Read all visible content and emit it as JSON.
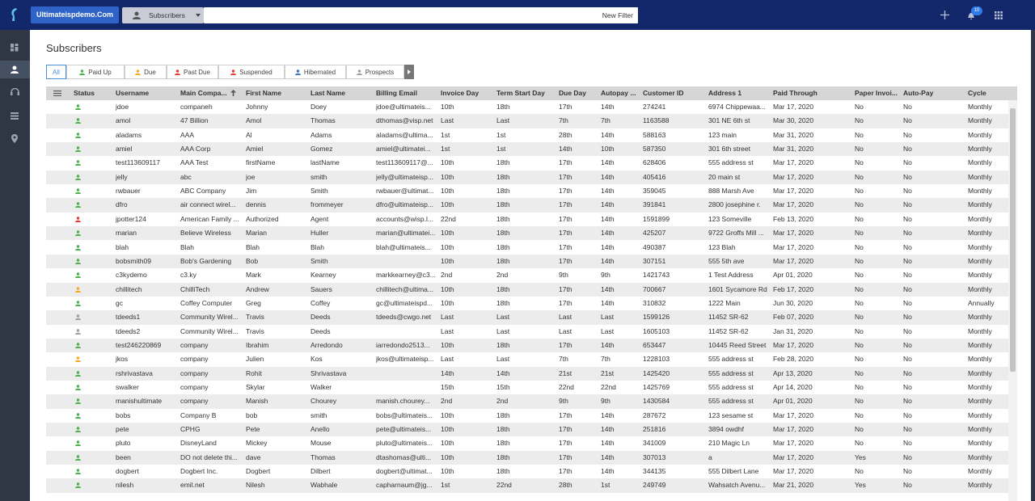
{
  "topbar": {
    "account": "Ultimateispdemo.Com",
    "module": "Subscribers",
    "filter_button": "New Filter",
    "notifications": "10"
  },
  "page": {
    "title": "Subscribers"
  },
  "tabs": [
    {
      "label": "All",
      "color": "#4a90d9"
    },
    {
      "label": "Paid Up",
      "color": "#4caf50"
    },
    {
      "label": "Due",
      "color": "#f5a623"
    },
    {
      "label": "Past Due",
      "color": "#e53935"
    },
    {
      "label": "Suspended",
      "color": "#e53935"
    },
    {
      "label": "Hibernated",
      "color": "#3b6fb6"
    },
    {
      "label": "Prospects",
      "color": "#9e9e9e"
    }
  ],
  "table": {
    "columns": [
      "Status",
      "Username",
      "Main Compa...",
      "First Name",
      "Last Name",
      "Billing Email",
      "Invoice Day",
      "Term Start Day",
      "Due Day",
      "Autopay ...",
      "Customer ID",
      "Address 1",
      "Paid Through",
      "Paper Invoi...",
      "Auto-Pay",
      "Cycle"
    ],
    "rows": [
      {
        "status_color": "#4caf50",
        "cells": [
          "jdoe",
          "companeh",
          "Johnny",
          "Doey",
          "jdoe@ultimateis...",
          "10th",
          "18th",
          "17th",
          "14th",
          "274241",
          "6974 Chippewaa...",
          "Mar 17, 2020",
          "No",
          "No",
          "Monthly"
        ]
      },
      {
        "status_color": "#4caf50",
        "cells": [
          "amol",
          "47 Billion",
          "Amol",
          "Thomas",
          "dthomas@visp.net",
          "Last",
          "Last",
          "7th",
          "7th",
          "1163588",
          "301 NE 6th st",
          "Mar 30, 2020",
          "No",
          "No",
          "Monthly"
        ]
      },
      {
        "status_color": "#4caf50",
        "cells": [
          "aladams",
          "AAA",
          "Al",
          "Adams",
          "aladams@ultima...",
          "1st",
          "1st",
          "28th",
          "14th",
          "588163",
          "123 main",
          "Mar 31, 2020",
          "No",
          "No",
          "Monthly"
        ]
      },
      {
        "status_color": "#4caf50",
        "cells": [
          "amiel",
          "AAA Corp",
          "Amiel",
          "Gomez",
          "amiel@ultimatei...",
          "1st",
          "1st",
          "14th",
          "10th",
          "587350",
          "301 6th street",
          "Mar 31, 2020",
          "No",
          "No",
          "Monthly"
        ]
      },
      {
        "status_color": "#4caf50",
        "cells": [
          "test113609117",
          "AAA Test",
          "firstName",
          "lastName",
          "test113609117@...",
          "10th",
          "18th",
          "17th",
          "14th",
          "628406",
          "555 address st",
          "Mar 17, 2020",
          "No",
          "No",
          "Monthly"
        ]
      },
      {
        "status_color": "#4caf50",
        "cells": [
          "jelly",
          "abc",
          "joe",
          "smith",
          "jelly@ultimateisp...",
          "10th",
          "18th",
          "17th",
          "14th",
          "405416",
          "20 main st",
          "Mar 17, 2020",
          "No",
          "No",
          "Monthly"
        ]
      },
      {
        "status_color": "#4caf50",
        "cells": [
          "rwbauer",
          "ABC Company",
          "Jim",
          "Smith",
          "rwbauer@ultimat...",
          "10th",
          "18th",
          "17th",
          "14th",
          "359045",
          "888 Marsh Ave",
          "Mar 17, 2020",
          "No",
          "No",
          "Monthly"
        ]
      },
      {
        "status_color": "#4caf50",
        "cells": [
          "dfro",
          "air connect wirel...",
          "dennis",
          "frommeyer",
          "dfro@ultimateisp...",
          "10th",
          "18th",
          "17th",
          "14th",
          "391841",
          "2800 josephine r.",
          "Mar 17, 2020",
          "No",
          "No",
          "Monthly"
        ]
      },
      {
        "status_color": "#e53935",
        "cells": [
          "jpotter124",
          "American Family ...",
          "Authorized",
          "Agent",
          "accounts@wisp.l...",
          "22nd",
          "18th",
          "17th",
          "14th",
          "1591899",
          "123 Someville",
          "Feb 13, 2020",
          "No",
          "No",
          "Monthly"
        ]
      },
      {
        "status_color": "#4caf50",
        "cells": [
          "marian",
          "Believe Wireless",
          "Marian",
          "Huller",
          "marian@ultimatei...",
          "10th",
          "18th",
          "17th",
          "14th",
          "425207",
          "9722 Groffs Mill ...",
          "Mar 17, 2020",
          "No",
          "No",
          "Monthly"
        ]
      },
      {
        "status_color": "#4caf50",
        "cells": [
          "blah",
          "Blah",
          "Blah",
          "Blah",
          "blah@ultimateis...",
          "10th",
          "18th",
          "17th",
          "14th",
          "490387",
          "123 Blah",
          "Mar 17, 2020",
          "No",
          "No",
          "Monthly"
        ]
      },
      {
        "status_color": "#4caf50",
        "cells": [
          "bobsmith09",
          "Bob's Gardening",
          "Bob",
          "Smith",
          null,
          "10th",
          "18th",
          "17th",
          "14th",
          "307151",
          "555 5th ave",
          "Mar 17, 2020",
          "No",
          "No",
          "Monthly"
        ]
      },
      {
        "status_color": "#4caf50",
        "cells": [
          "c3kydemo",
          "c3.ky",
          "Mark",
          "Kearney",
          "markkearney@c3...",
          "2nd",
          "2nd",
          "9th",
          "9th",
          "1421743",
          "1 Test Address",
          "Apr 01, 2020",
          "No",
          "No",
          "Monthly"
        ]
      },
      {
        "status_color": "#f5a623",
        "cells": [
          "chillitech",
          "ChilliTech",
          "Andrew",
          "Sauers",
          "chillitech@ultima...",
          "10th",
          "18th",
          "17th",
          "14th",
          "700667",
          "1601 Sycamore Rd",
          "Feb 17, 2020",
          "No",
          "No",
          "Monthly"
        ]
      },
      {
        "status_color": "#4caf50",
        "cells": [
          "gc",
          "Coffey Computer",
          "Greg",
          "Coffey",
          "gc@ultimateispd...",
          "10th",
          "18th",
          "17th",
          "14th",
          "310832",
          "1222 Main",
          "Jun 30, 2020",
          "No",
          "No",
          "Annually"
        ]
      },
      {
        "status_color": "#9e9e9e",
        "cells": [
          "tdeeds1",
          "Community Wirel...",
          "Travis",
          "Deeds",
          "tdeeds@cwgo.net",
          "Last",
          "Last",
          "Last",
          "Last",
          "1599126",
          "11452 SR-62",
          "Feb 07, 2020",
          "No",
          "No",
          "Monthly"
        ]
      },
      {
        "status_color": "#9e9e9e",
        "cells": [
          "tdeeds2",
          "Community Wirel...",
          "Travis",
          "Deeds",
          null,
          "Last",
          "Last",
          "Last",
          "Last",
          "1605103",
          "11452 SR-62",
          "Jan 31, 2020",
          "No",
          "No",
          "Monthly"
        ]
      },
      {
        "status_color": "#4caf50",
        "cells": [
          "test246220869",
          "company",
          "Ibrahim",
          "Arredondo",
          "iarredondo2513...",
          "10th",
          "18th",
          "17th",
          "14th",
          "653447",
          "10445 Reed Street",
          "Mar 17, 2020",
          "No",
          "No",
          "Monthly"
        ]
      },
      {
        "status_color": "#f5a623",
        "cells": [
          "jkos",
          "company",
          "Julien",
          "Kos",
          "jkos@ultimateisp...",
          "Last",
          "Last",
          "7th",
          "7th",
          "1228103",
          "555 address st",
          "Feb 28, 2020",
          "No",
          "No",
          "Monthly"
        ]
      },
      {
        "status_color": "#4caf50",
        "cells": [
          "rshrivastava",
          "company",
          "Rohit",
          "Shrivastava",
          null,
          "14th",
          "14th",
          "21st",
          "21st",
          "1425420",
          "555 address st",
          "Apr 13, 2020",
          "No",
          "No",
          "Monthly"
        ]
      },
      {
        "status_color": "#4caf50",
        "cells": [
          "swalker",
          "company",
          "Skylar",
          "Walker",
          null,
          "15th",
          "15th",
          "22nd",
          "22nd",
          "1425769",
          "555 address st",
          "Apr 14, 2020",
          "No",
          "No",
          "Monthly"
        ]
      },
      {
        "status_color": "#4caf50",
        "cells": [
          "manishultimate",
          "company",
          "Manish",
          "Chourey",
          "manish.chourey...",
          "2nd",
          "2nd",
          "9th",
          "9th",
          "1430584",
          "555 address st",
          "Apr 01, 2020",
          "No",
          "No",
          "Monthly"
        ]
      },
      {
        "status_color": "#4caf50",
        "cells": [
          "bobs",
          "Company B",
          "bob",
          "smith",
          "bobs@ultimateis...",
          "10th",
          "18th",
          "17th",
          "14th",
          "287672",
          "123 sesame st",
          "Mar 17, 2020",
          "No",
          "No",
          "Monthly"
        ]
      },
      {
        "status_color": "#4caf50",
        "cells": [
          "pete",
          "CPHG",
          "Pete",
          "Anello",
          "pete@ultimateis...",
          "10th",
          "18th",
          "17th",
          "14th",
          "251816",
          "3894 owdhf",
          "Mar 17, 2020",
          "No",
          "No",
          "Monthly"
        ]
      },
      {
        "status_color": "#4caf50",
        "cells": [
          "pluto",
          "DisneyLand",
          "Mickey",
          "Mouse",
          "pluto@ultimateis...",
          "10th",
          "18th",
          "17th",
          "14th",
          "341009",
          "210 Magic Ln",
          "Mar 17, 2020",
          "No",
          "No",
          "Monthly"
        ]
      },
      {
        "status_color": "#4caf50",
        "cells": [
          "been",
          "DO not delete thi...",
          "dave",
          "Thomas",
          "dtashomas@ulti...",
          "10th",
          "18th",
          "17th",
          "14th",
          "307013",
          "a",
          "Mar 17, 2020",
          "Yes",
          "No",
          "Monthly"
        ]
      },
      {
        "status_color": "#4caf50",
        "cells": [
          "dogbert",
          "Dogbert Inc.",
          "Dogbert",
          "Dilbert",
          "dogbert@ultimat...",
          "10th",
          "18th",
          "17th",
          "14th",
          "344135",
          "555 Dilbert Lane",
          "Mar 17, 2020",
          "No",
          "No",
          "Monthly"
        ]
      },
      {
        "status_color": "#4caf50",
        "cells": [
          "nilesh",
          "emil.net",
          "Nilesh",
          "Wabhale",
          "capharnaum@jg...",
          "1st",
          "22nd",
          "28th",
          "1st",
          "249749",
          "Wahsatch Avenu...",
          "Mar 21, 2020",
          "Yes",
          "No",
          "Monthly"
        ]
      }
    ]
  }
}
